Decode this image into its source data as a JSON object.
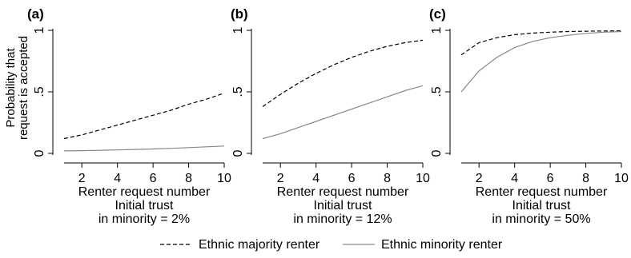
{
  "chart_data": [
    {
      "type": "line",
      "panel_label": "(a)",
      "xlabel": "Renter request number",
      "caption_lines": [
        "Initial trust",
        "in minority = 2%"
      ],
      "ylabel_lines": [
        "Probability that",
        "request is accepted"
      ],
      "xlim": [
        1,
        10
      ],
      "ylim": [
        0,
        1
      ],
      "x_ticks": [
        2,
        4,
        6,
        8,
        10
      ],
      "y_ticks": [
        0,
        0.5,
        1
      ],
      "y_tick_labels": [
        "0",
        ".5",
        "1"
      ],
      "x": [
        1,
        2,
        3,
        4,
        5,
        6,
        7,
        8,
        9,
        10
      ],
      "series": [
        {
          "name": "Ethnic majority renter",
          "style": "dashed",
          "color": "#000000",
          "values": [
            0.12,
            0.15,
            0.19,
            0.23,
            0.27,
            0.31,
            0.35,
            0.4,
            0.44,
            0.49
          ]
        },
        {
          "name": "Ethnic minority renter",
          "style": "solid",
          "color": "#888888",
          "values": [
            0.02,
            0.022,
            0.025,
            0.028,
            0.032,
            0.036,
            0.041,
            0.047,
            0.053,
            0.06
          ]
        }
      ]
    },
    {
      "type": "line",
      "panel_label": "(b)",
      "xlabel": "Renter request number",
      "caption_lines": [
        "Initial trust",
        "in minority = 12%"
      ],
      "ylabel_lines": [],
      "xlim": [
        1,
        10
      ],
      "ylim": [
        0,
        1
      ],
      "x_ticks": [
        2,
        4,
        6,
        8,
        10
      ],
      "y_ticks": [
        0,
        0.5,
        1
      ],
      "y_tick_labels": [
        "0",
        ".5",
        "1"
      ],
      "x": [
        1,
        2,
        3,
        4,
        5,
        6,
        7,
        8,
        9,
        10
      ],
      "series": [
        {
          "name": "Ethnic majority renter",
          "style": "dashed",
          "color": "#000000",
          "values": [
            0.38,
            0.48,
            0.57,
            0.65,
            0.72,
            0.78,
            0.83,
            0.87,
            0.9,
            0.92
          ]
        },
        {
          "name": "Ethnic minority renter",
          "style": "solid",
          "color": "#888888",
          "values": [
            0.12,
            0.16,
            0.21,
            0.26,
            0.31,
            0.36,
            0.41,
            0.46,
            0.51,
            0.55
          ]
        }
      ]
    },
    {
      "type": "line",
      "panel_label": "(c)",
      "xlabel": "Renter request number",
      "caption_lines": [
        "Initial trust",
        "in minority = 50%"
      ],
      "ylabel_lines": [],
      "xlim": [
        1,
        10
      ],
      "ylim": [
        0,
        1
      ],
      "x_ticks": [
        2,
        4,
        6,
        8,
        10
      ],
      "y_ticks": [
        0,
        0.5,
        1
      ],
      "y_tick_labels": [
        "0",
        ".5",
        "1"
      ],
      "x": [
        1,
        2,
        3,
        4,
        5,
        6,
        7,
        8,
        9,
        10
      ],
      "series": [
        {
          "name": "Ethnic majority renter",
          "style": "dashed",
          "color": "#000000",
          "values": [
            0.8,
            0.9,
            0.94,
            0.965,
            0.978,
            0.985,
            0.99,
            0.993,
            0.995,
            0.997
          ]
        },
        {
          "name": "Ethnic minority renter",
          "style": "solid",
          "color": "#888888",
          "values": [
            0.5,
            0.67,
            0.78,
            0.86,
            0.91,
            0.94,
            0.96,
            0.975,
            0.985,
            0.99
          ]
        }
      ]
    }
  ],
  "legend": {
    "placement": "bottom",
    "items": [
      {
        "label": "Ethnic majority renter",
        "style": "dashed",
        "color": "#000000"
      },
      {
        "label": "Ethnic minority renter",
        "style": "solid",
        "color": "#888888"
      }
    ]
  }
}
